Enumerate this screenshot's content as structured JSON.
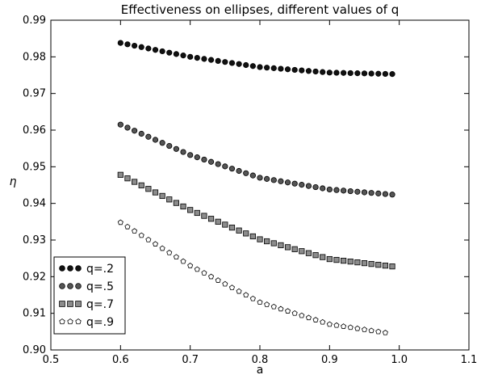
{
  "chart_data": {
    "type": "scatter",
    "title": "Effectiveness on ellipses, different values of q",
    "xlabel": "a",
    "ylabel": "η",
    "xlim": [
      0.5,
      1.1
    ],
    "ylim": [
      0.9,
      0.99
    ],
    "x_ticks": [
      "0.5",
      "0.6",
      "0.7",
      "0.8",
      "0.9",
      "1.0",
      "1.1"
    ],
    "y_ticks": [
      "0.90",
      "0.91",
      "0.92",
      "0.93",
      "0.94",
      "0.95",
      "0.96",
      "0.97",
      "0.98",
      "0.99"
    ],
    "grid": false,
    "legend_position": "bottom-left",
    "x_range": {
      "start": 0.6,
      "end": 0.99,
      "points": 40
    },
    "series": [
      {
        "name": "q=.2",
        "marker": "circle",
        "fill": "#111111",
        "stroke": "#000000",
        "anchors": [
          [
            0.6,
            0.9838
          ],
          [
            0.7,
            0.98
          ],
          [
            0.8,
            0.9772
          ],
          [
            0.9,
            0.9757
          ],
          [
            0.99,
            0.9753
          ]
        ]
      },
      {
        "name": "q=.5",
        "marker": "circle",
        "fill": "#555555",
        "stroke": "#000000",
        "anchors": [
          [
            0.6,
            0.9615
          ],
          [
            0.7,
            0.9532
          ],
          [
            0.8,
            0.947
          ],
          [
            0.9,
            0.9438
          ],
          [
            0.99,
            0.9424
          ]
        ]
      },
      {
        "name": "q=.7",
        "marker": "square",
        "fill": "#8c8c8c",
        "stroke": "#000000",
        "anchors": [
          [
            0.6,
            0.9478
          ],
          [
            0.7,
            0.9382
          ],
          [
            0.8,
            0.9302
          ],
          [
            0.9,
            0.9248
          ],
          [
            0.99,
            0.9228
          ]
        ]
      },
      {
        "name": "q=.9",
        "marker": "pentagon",
        "fill": "#ffffff",
        "stroke": "#000000",
        "anchors": [
          [
            0.6,
            0.9348
          ],
          [
            0.7,
            0.923
          ],
          [
            0.8,
            0.913
          ],
          [
            0.9,
            0.907
          ],
          [
            0.98,
            0.9047
          ]
        ]
      }
    ]
  }
}
